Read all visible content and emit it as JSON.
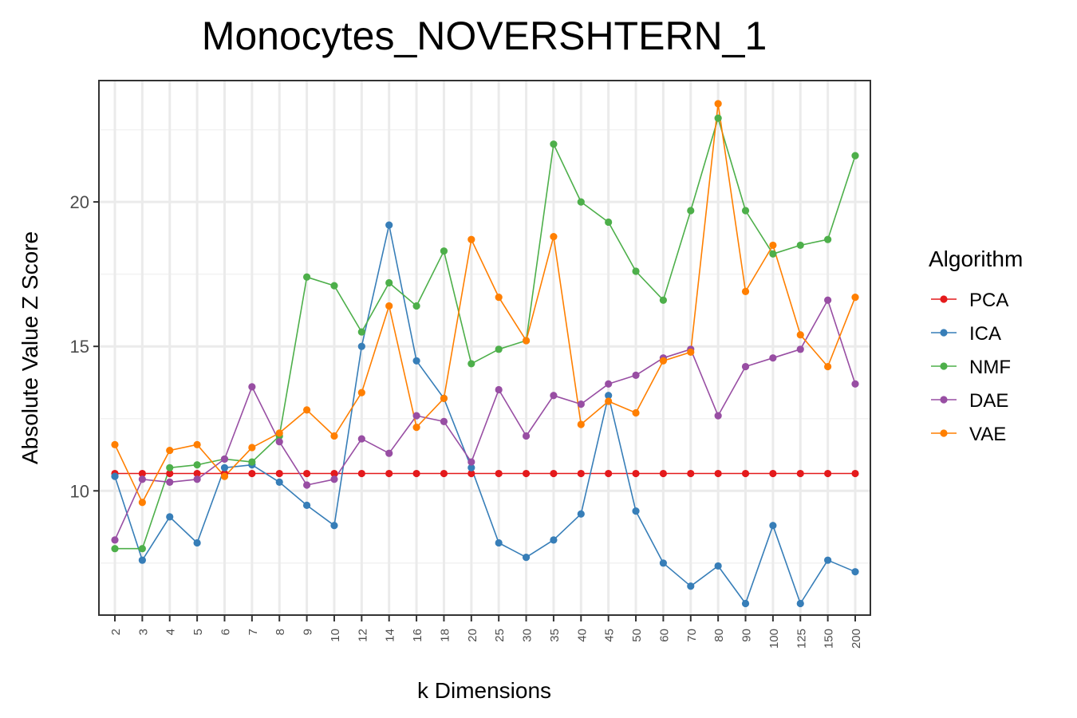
{
  "chart_data": {
    "type": "line",
    "title": "Monocytes_NOVERSHTERN_1",
    "xlabel": "k Dimensions",
    "ylabel": "Absolute Value Z Score",
    "categories": [
      "2",
      "3",
      "4",
      "5",
      "6",
      "7",
      "8",
      "9",
      "10",
      "12",
      "14",
      "16",
      "18",
      "20",
      "25",
      "30",
      "35",
      "40",
      "45",
      "50",
      "60",
      "70",
      "80",
      "90",
      "100",
      "125",
      "150",
      "200"
    ],
    "yticks": [
      10,
      15,
      20
    ],
    "ylim": [
      5.7,
      24.2
    ],
    "grid": true,
    "legend": {
      "title": "Algorithm",
      "position": "right"
    },
    "series": [
      {
        "name": "PCA",
        "color": "#e41a1c",
        "values": [
          10.6,
          10.6,
          10.6,
          10.6,
          10.6,
          10.6,
          10.6,
          10.6,
          10.6,
          10.6,
          10.6,
          10.6,
          10.6,
          10.6,
          10.6,
          10.6,
          10.6,
          10.6,
          10.6,
          10.6,
          10.6,
          10.6,
          10.6,
          10.6,
          10.6,
          10.6,
          10.6,
          10.6
        ]
      },
      {
        "name": "ICA",
        "color": "#377eb8",
        "values": [
          10.5,
          7.6,
          9.1,
          8.2,
          10.8,
          10.9,
          10.3,
          9.5,
          8.8,
          15.0,
          19.2,
          14.5,
          13.2,
          10.8,
          8.2,
          7.7,
          8.3,
          9.2,
          13.3,
          9.3,
          7.5,
          6.7,
          7.4,
          6.1,
          8.8,
          6.1,
          7.6,
          7.2
        ]
      },
      {
        "name": "NMF",
        "color": "#4daf4a",
        "values": [
          8.0,
          8.0,
          10.8,
          10.9,
          11.1,
          11.0,
          11.9,
          17.4,
          17.1,
          15.5,
          17.2,
          16.4,
          18.3,
          14.4,
          14.9,
          15.2,
          22.0,
          20.0,
          19.3,
          17.6,
          16.6,
          19.7,
          22.9,
          19.7,
          18.2,
          18.5,
          18.7,
          21.6
        ]
      },
      {
        "name": "DAE",
        "color": "#984ea3",
        "values": [
          8.3,
          10.4,
          10.3,
          10.4,
          11.1,
          13.6,
          11.7,
          10.2,
          10.4,
          11.8,
          11.3,
          12.6,
          12.4,
          11.0,
          13.5,
          11.9,
          13.3,
          13.0,
          13.7,
          14.0,
          14.6,
          14.9,
          12.6,
          14.3,
          14.6,
          14.9,
          16.6,
          13.7
        ]
      },
      {
        "name": "VAE",
        "color": "#ff7f00",
        "values": [
          11.6,
          9.6,
          11.4,
          11.6,
          10.5,
          11.5,
          12.0,
          12.8,
          11.9,
          13.4,
          16.4,
          12.2,
          13.2,
          18.7,
          16.7,
          15.2,
          18.8,
          12.3,
          13.1,
          12.7,
          14.5,
          14.8,
          23.4,
          16.9,
          18.5,
          15.4,
          14.3,
          16.7
        ]
      }
    ]
  }
}
